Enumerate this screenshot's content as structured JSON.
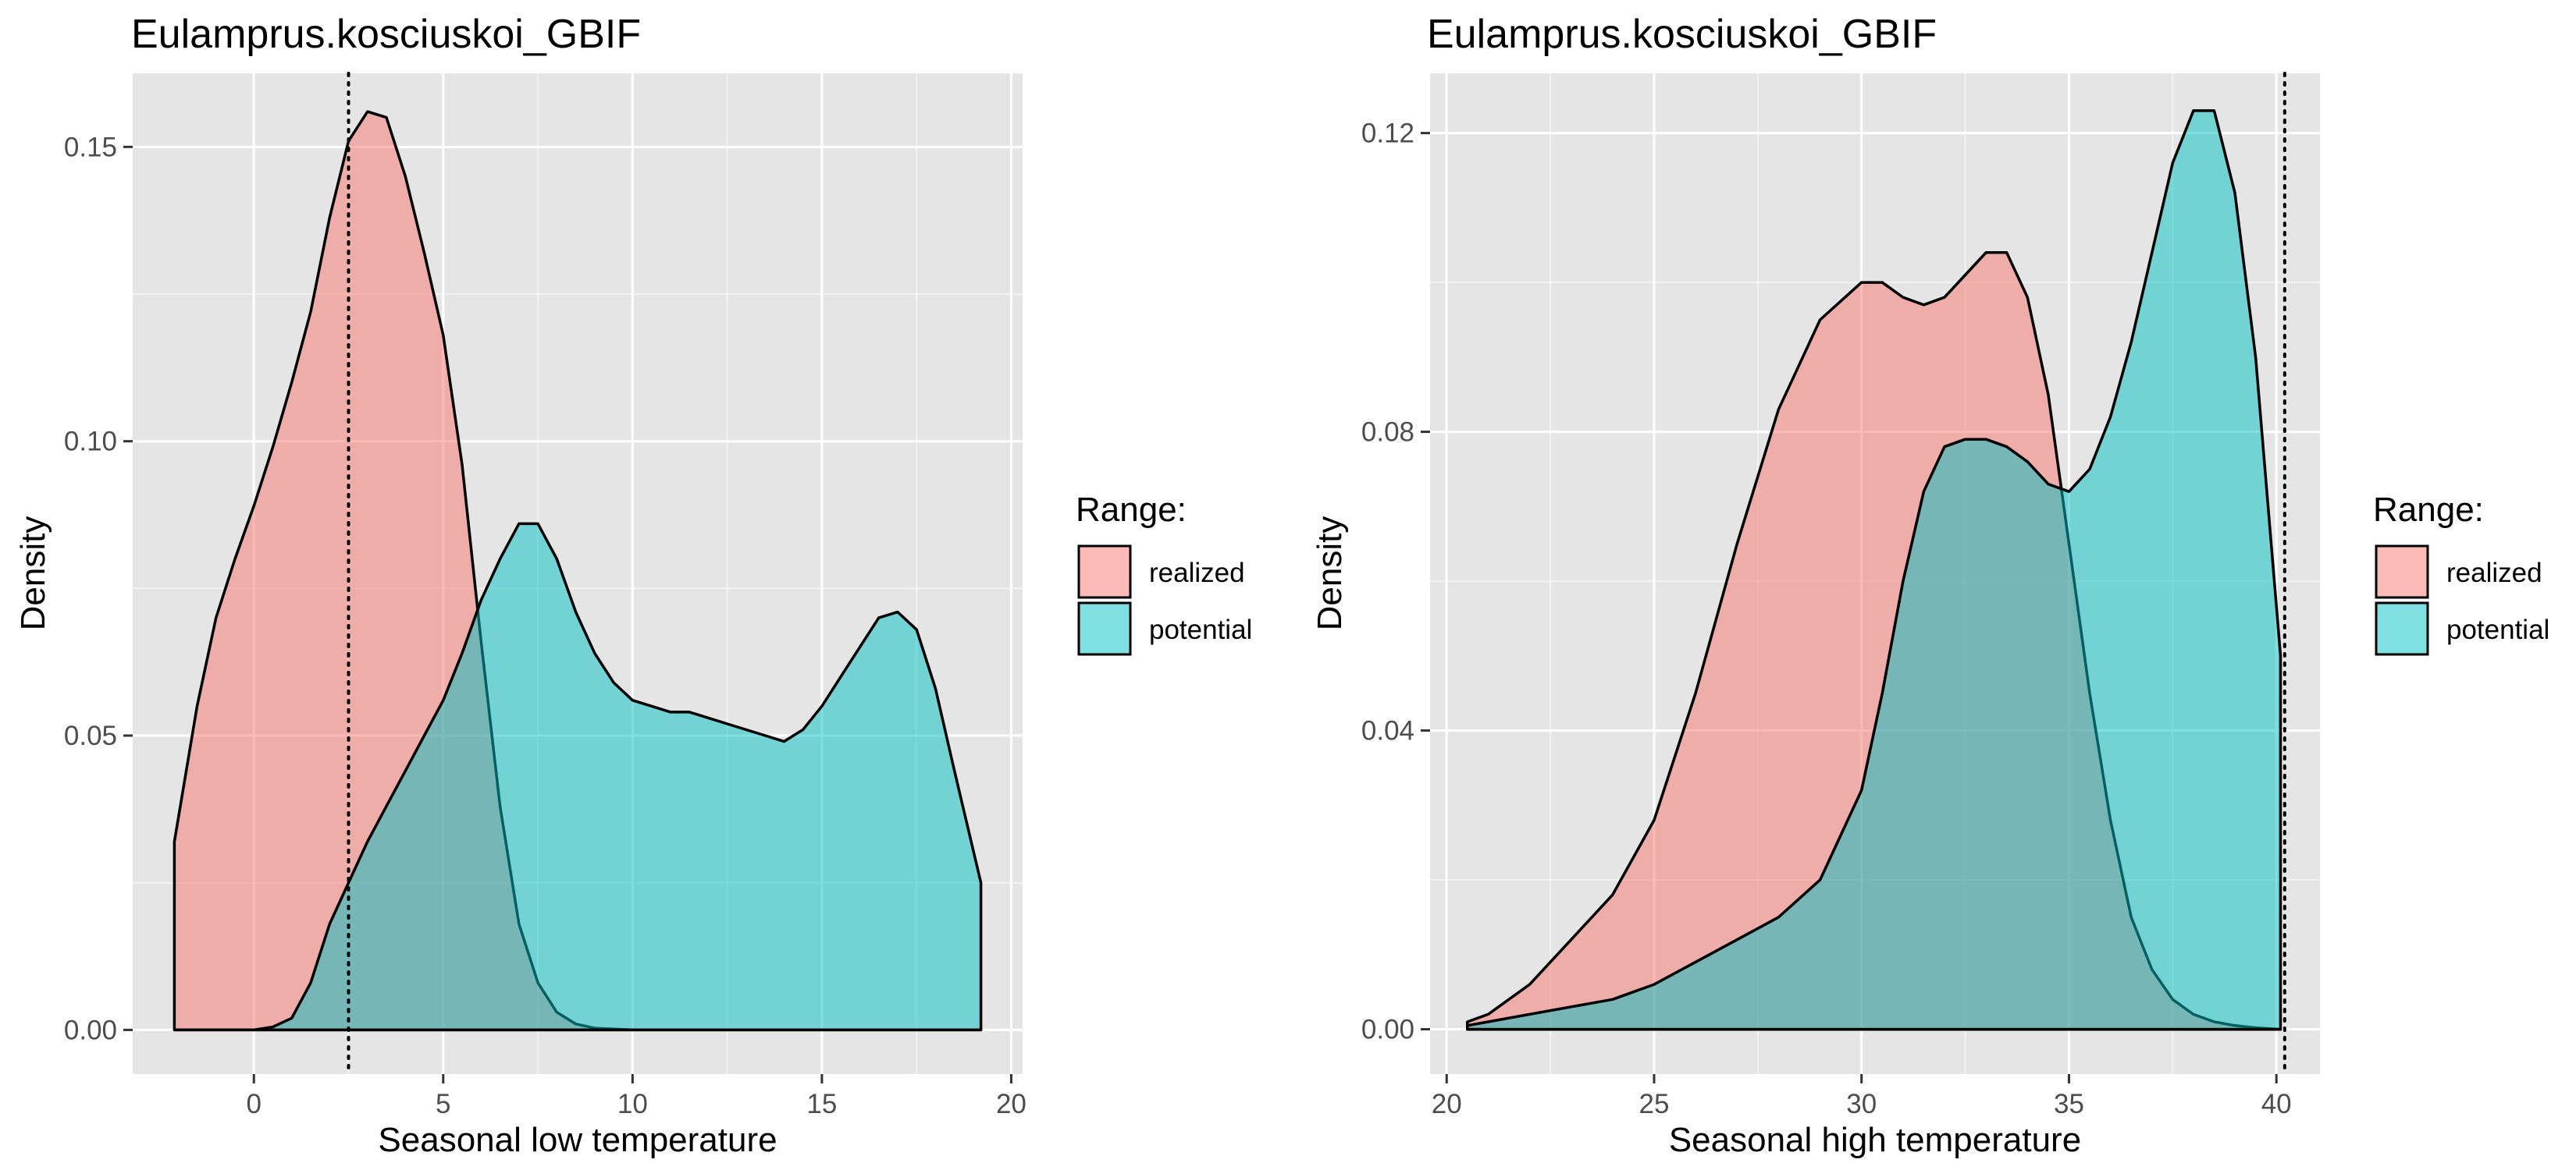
{
  "colors": {
    "realized": "#F8766D",
    "potential": "#00BFC4",
    "panel_bg": "#E5E5E5",
    "grid_major": "#FFFFFF",
    "tick_text": "#4D4D4D"
  },
  "chart_data": [
    {
      "type": "area",
      "title": "Eulamprus.kosciuskoi_GBIF",
      "xlabel": "Seasonal low temperature",
      "ylabel": "Density",
      "xlim": [
        -3.2,
        20.3
      ],
      "ylim": [
        -0.0075,
        0.1625
      ],
      "x_ticks": [
        0,
        5,
        10,
        15,
        20
      ],
      "x_tick_labels": [
        "0",
        "5",
        "10",
        "15",
        "20"
      ],
      "y_ticks": [
        0.0,
        0.05,
        0.1,
        0.15
      ],
      "y_tick_labels": [
        "0.00",
        "0.05",
        "0.10",
        "0.15"
      ],
      "grid": true,
      "legend_title": "Range:",
      "legend_position": "right",
      "reference_line": {
        "x": 2.5,
        "style": "dotted"
      },
      "series": [
        {
          "name": "realized",
          "x": [
            -2.1,
            -1.5,
            -1,
            -0.5,
            0,
            0.5,
            1,
            1.5,
            2,
            2.5,
            3,
            3.5,
            4,
            4.5,
            5,
            5.5,
            6,
            6.5,
            7,
            7.5,
            8,
            8.5,
            9,
            10,
            11,
            12,
            13,
            14,
            15,
            16,
            17,
            18,
            19.2
          ],
          "y": [
            0.032,
            0.055,
            0.07,
            0.08,
            0.089,
            0.099,
            0.11,
            0.122,
            0.138,
            0.151,
            0.156,
            0.155,
            0.145,
            0.132,
            0.118,
            0.096,
            0.066,
            0.038,
            0.018,
            0.008,
            0.003,
            0.001,
            0.0003,
            0.0,
            0.0,
            0.0,
            0.0,
            0.0,
            0.0,
            0.0,
            0.0,
            0.0,
            0.0
          ]
        },
        {
          "name": "potential",
          "x": [
            -2.1,
            -1,
            0,
            0.5,
            1,
            1.5,
            2,
            2.5,
            3,
            3.5,
            4,
            4.5,
            5,
            5.5,
            6,
            6.5,
            7,
            7.5,
            8,
            8.5,
            9,
            9.5,
            10,
            10.5,
            11,
            11.5,
            12,
            12.5,
            13,
            13.5,
            14,
            14.5,
            15,
            15.5,
            16,
            16.5,
            17,
            17.5,
            18,
            18.5,
            19.2
          ],
          "y": [
            0.0,
            0.0,
            0.0,
            0.0005,
            0.002,
            0.008,
            0.018,
            0.025,
            0.032,
            0.038,
            0.044,
            0.05,
            0.056,
            0.064,
            0.073,
            0.08,
            0.086,
            0.086,
            0.08,
            0.071,
            0.064,
            0.059,
            0.056,
            0.055,
            0.054,
            0.054,
            0.053,
            0.052,
            0.051,
            0.05,
            0.049,
            0.051,
            0.055,
            0.06,
            0.065,
            0.07,
            0.071,
            0.068,
            0.058,
            0.044,
            0.025
          ]
        }
      ]
    },
    {
      "type": "area",
      "title": "Eulamprus.kosciuskoi_GBIF",
      "xlabel": "Seasonal high temperature",
      "ylabel": "Density",
      "xlim": [
        19.6,
        41.05
      ],
      "ylim": [
        -0.006,
        0.128
      ],
      "x_ticks": [
        20,
        25,
        30,
        35,
        40
      ],
      "x_tick_labels": [
        "20",
        "25",
        "30",
        "35",
        "40"
      ],
      "y_ticks": [
        0.0,
        0.04,
        0.08,
        0.12
      ],
      "y_tick_labels": [
        "0.00",
        "0.04",
        "0.08",
        "0.12"
      ],
      "grid": true,
      "legend_title": "Range:",
      "legend_position": "right",
      "reference_line": {
        "x": 40.2,
        "style": "dotted"
      },
      "series": [
        {
          "name": "realized",
          "x": [
            20.5,
            21,
            22,
            23,
            24,
            25,
            26,
            27,
            28,
            29,
            30,
            30.5,
            31,
            31.5,
            32,
            32.5,
            33,
            33.5,
            34,
            34.5,
            35,
            35.5,
            36,
            36.5,
            37,
            37.5,
            38,
            38.5,
            39,
            39.5,
            40.1
          ],
          "y": [
            0.001,
            0.002,
            0.006,
            0.012,
            0.018,
            0.028,
            0.045,
            0.065,
            0.083,
            0.095,
            0.1,
            0.1,
            0.098,
            0.097,
            0.098,
            0.101,
            0.104,
            0.104,
            0.098,
            0.085,
            0.065,
            0.045,
            0.028,
            0.015,
            0.008,
            0.004,
            0.002,
            0.001,
            0.0005,
            0.0002,
            0.0
          ]
        },
        {
          "name": "potential",
          "x": [
            20.5,
            21,
            22,
            23,
            24,
            25,
            26,
            27,
            28,
            29,
            30,
            30.5,
            31,
            31.5,
            32,
            32.5,
            33,
            33.5,
            34,
            34.5,
            35,
            35.5,
            36,
            36.5,
            37,
            37.5,
            38,
            38.5,
            39,
            39.5,
            40.1
          ],
          "y": [
            0.0005,
            0.001,
            0.002,
            0.003,
            0.004,
            0.006,
            0.009,
            0.012,
            0.015,
            0.02,
            0.032,
            0.045,
            0.06,
            0.072,
            0.078,
            0.079,
            0.079,
            0.078,
            0.076,
            0.073,
            0.072,
            0.075,
            0.082,
            0.092,
            0.104,
            0.116,
            0.123,
            0.123,
            0.112,
            0.09,
            0.05
          ]
        }
      ]
    }
  ]
}
